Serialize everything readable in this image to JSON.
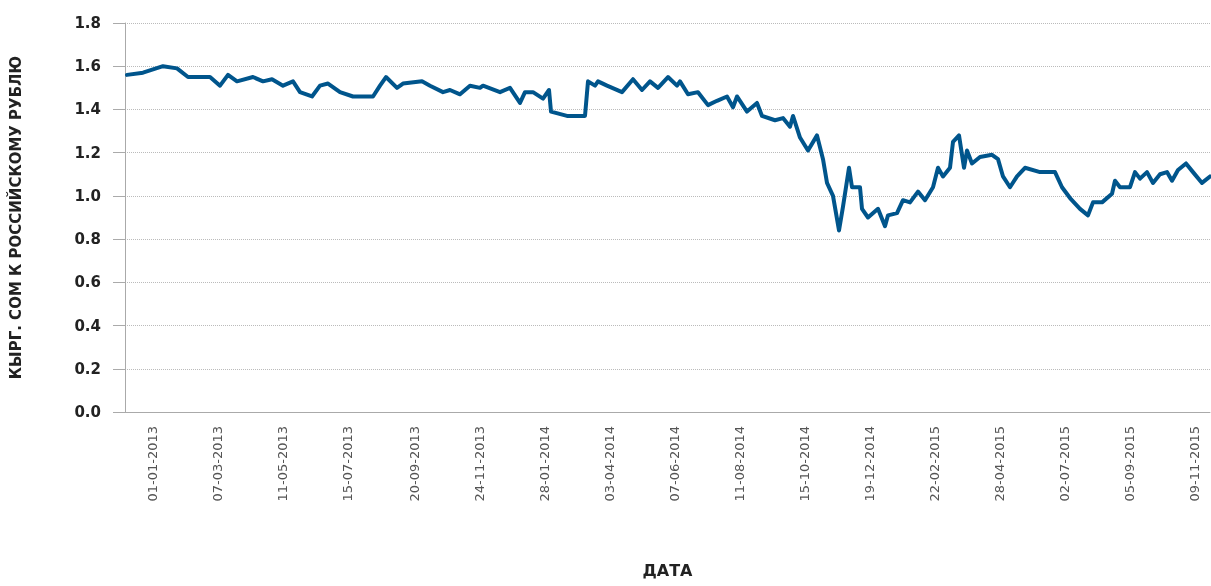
{
  "chart_data": {
    "type": "line",
    "xlabel": "ДАТА",
    "ylabel": "КЫРГ. СОМ К РОССИЙСКОМУ РУБЛЮ",
    "x": [
      "2012-12-07",
      "2012-12-23",
      "2013-01-12",
      "2013-01-26",
      "2013-02-06",
      "2013-02-28",
      "2013-03-10",
      "2013-03-18",
      "2013-03-27",
      "2013-04-12",
      "2013-04-22",
      "2013-05-01",
      "2013-05-12",
      "2013-05-22",
      "2013-05-29",
      "2013-06-10",
      "2013-06-18",
      "2013-06-26",
      "2013-07-08",
      "2013-07-21",
      "2013-08-10",
      "2013-08-17",
      "2013-08-23",
      "2013-09-03",
      "2013-09-09",
      "2013-09-28",
      "2013-10-06",
      "2013-10-19",
      "2013-10-26",
      "2013-11-05",
      "2013-11-15",
      "2013-11-25",
      "2013-11-28",
      "2013-12-15",
      "2013-12-25",
      "2014-01-04",
      "2014-01-09",
      "2014-01-17",
      "2014-01-27",
      "2014-02-02",
      "2014-02-04",
      "2014-02-20",
      "2014-03-10",
      "2014-03-13",
      "2014-03-20",
      "2014-03-23",
      "2014-04-01",
      "2014-04-16",
      "2014-04-27",
      "2014-05-06",
      "2014-05-14",
      "2014-05-22",
      "2014-06-01",
      "2014-06-10",
      "2014-06-13",
      "2014-06-21",
      "2014-07-01",
      "2014-07-11",
      "2014-07-20",
      "2014-07-30",
      "2014-08-05",
      "2014-08-09",
      "2014-08-19",
      "2014-08-29",
      "2014-09-03",
      "2014-09-16",
      "2014-09-24",
      "2014-10-01",
      "2014-10-04",
      "2014-10-11",
      "2014-10-19",
      "2014-10-28",
      "2014-11-03",
      "2014-11-07",
      "2014-11-13",
      "2014-11-19",
      "2014-11-23",
      "2014-11-29",
      "2014-12-02",
      "2014-12-10",
      "2014-12-12",
      "2014-12-18",
      "2014-12-28",
      "2015-01-04",
      "2015-01-07",
      "2015-01-16",
      "2015-01-22",
      "2015-01-29",
      "2015-02-06",
      "2015-02-13",
      "2015-02-21",
      "2015-02-26",
      "2015-03-03",
      "2015-03-10",
      "2015-03-13",
      "2015-03-19",
      "2015-03-24",
      "2015-03-27",
      "2015-04-01",
      "2015-04-09",
      "2015-04-21",
      "2015-04-27",
      "2015-05-02",
      "2015-05-09",
      "2015-05-16",
      "2015-05-24",
      "2015-06-08",
      "2015-06-15",
      "2015-06-23",
      "2015-06-30",
      "2015-07-08",
      "2015-07-18",
      "2015-07-26",
      "2015-07-31",
      "2015-08-09",
      "2015-08-19",
      "2015-08-22",
      "2015-08-27",
      "2015-09-06",
      "2015-09-11",
      "2015-09-16",
      "2015-09-23",
      "2015-09-29",
      "2015-10-06",
      "2015-10-13",
      "2015-10-18",
      "2015-10-24",
      "2015-11-01",
      "2015-11-08",
      "2015-11-17",
      "2015-11-25"
    ],
    "series": [
      {
        "color": "#00558c",
        "values": [
          1.56,
          1.57,
          1.6,
          1.59,
          1.55,
          1.55,
          1.51,
          1.56,
          1.53,
          1.55,
          1.53,
          1.54,
          1.51,
          1.53,
          1.48,
          1.46,
          1.51,
          1.52,
          1.48,
          1.46,
          1.46,
          1.51,
          1.55,
          1.5,
          1.52,
          1.53,
          1.51,
          1.48,
          1.49,
          1.47,
          1.51,
          1.5,
          1.51,
          1.48,
          1.5,
          1.43,
          1.48,
          1.48,
          1.45,
          1.49,
          1.39,
          1.37,
          1.37,
          1.53,
          1.51,
          1.53,
          1.51,
          1.48,
          1.54,
          1.49,
          1.53,
          1.5,
          1.55,
          1.51,
          1.53,
          1.47,
          1.48,
          1.42,
          1.44,
          1.46,
          1.41,
          1.46,
          1.39,
          1.43,
          1.37,
          1.35,
          1.36,
          1.32,
          1.37,
          1.27,
          1.21,
          1.28,
          1.17,
          1.06,
          1.0,
          0.84,
          0.95,
          1.13,
          1.04,
          1.04,
          0.94,
          0.9,
          0.94,
          0.86,
          0.91,
          0.92,
          0.98,
          0.97,
          1.02,
          0.98,
          1.04,
          1.13,
          1.09,
          1.13,
          1.25,
          1.28,
          1.13,
          1.21,
          1.15,
          1.18,
          1.19,
          1.17,
          1.09,
          1.04,
          1.09,
          1.13,
          1.11,
          1.11,
          1.11,
          1.04,
          0.99,
          0.94,
          0.91,
          0.97,
          0.97,
          1.01,
          1.07,
          1.04,
          1.04,
          1.11,
          1.08,
          1.11,
          1.06,
          1.1,
          1.11,
          1.07,
          1.12,
          1.15,
          1.11,
          1.06,
          1.09
        ]
      }
    ],
    "xlim": [
      "2012-12-05",
      "2015-11-25"
    ],
    "xticks": [
      {
        "value": "2013-01-01",
        "label": "01-01-2013"
      },
      {
        "value": "2013-03-07",
        "label": "07-03-2013"
      },
      {
        "value": "2013-05-11",
        "label": "11-05-2013"
      },
      {
        "value": "2013-07-15",
        "label": "15-07-2013"
      },
      {
        "value": "2013-09-20",
        "label": "20-09-2013"
      },
      {
        "value": "2013-11-24",
        "label": "24-11-2013"
      },
      {
        "value": "2014-01-28",
        "label": "28-01-2014"
      },
      {
        "value": "2014-04-03",
        "label": "03-04-2014"
      },
      {
        "value": "2014-06-07",
        "label": "07-06-2014"
      },
      {
        "value": "2014-08-11",
        "label": "11-08-2014"
      },
      {
        "value": "2014-10-15",
        "label": "15-10-2014"
      },
      {
        "value": "2014-12-19",
        "label": "19-12-2014"
      },
      {
        "value": "2015-02-22",
        "label": "22-02-2015"
      },
      {
        "value": "2015-04-28",
        "label": "28-04-2015"
      },
      {
        "value": "2015-07-02",
        "label": "02-07-2015"
      },
      {
        "value": "2015-09-05",
        "label": "05-09-2015"
      },
      {
        "value": "2015-11-09",
        "label": "09-11-2015"
      }
    ],
    "ylim": [
      0,
      1.8
    ],
    "yticks": [
      {
        "value": 0,
        "label": "0.0"
      },
      {
        "value": 0.2,
        "label": "0.2"
      },
      {
        "value": 0.4,
        "label": "0.4"
      },
      {
        "value": 0.6,
        "label": "0.6"
      },
      {
        "value": 0.8,
        "label": "0.8"
      },
      {
        "value": 1,
        "label": "1.0"
      },
      {
        "value": 1.2,
        "label": "1.2"
      },
      {
        "value": 1.4,
        "label": "1.4"
      },
      {
        "value": 1.6,
        "label": "1.6"
      },
      {
        "value": 1.8,
        "label": "1.8"
      }
    ],
    "grid": "y",
    "legend": false,
    "marker": "none",
    "line_style": "solid"
  }
}
